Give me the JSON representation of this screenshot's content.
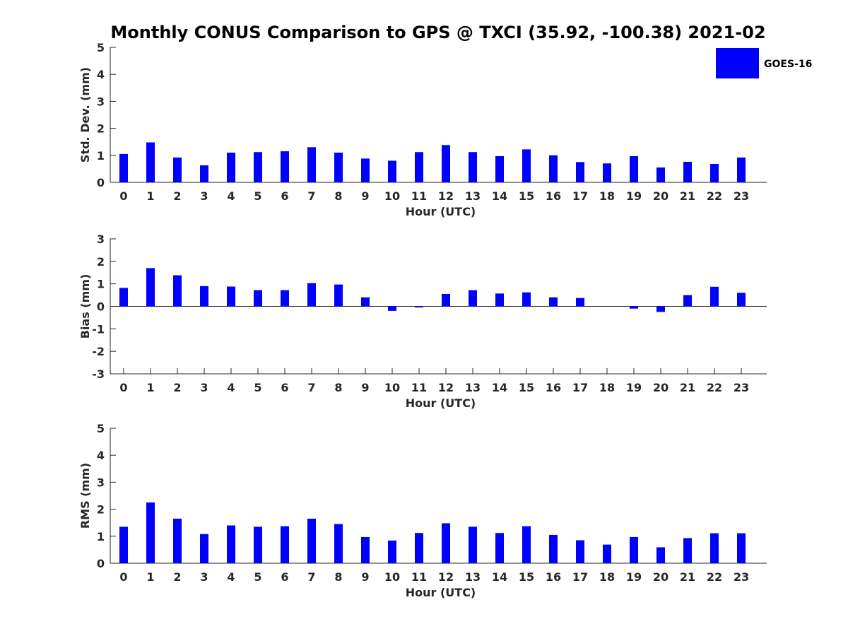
{
  "figure": {
    "title": "Monthly CONUS Comparison to GPS @ TXCI (35.92, -100.38) 2021-02",
    "bar_color": "#0000ff",
    "legend": {
      "label": "GOES-16",
      "placement": "top-right"
    }
  },
  "chart_data": [
    {
      "type": "bar",
      "xlabel": "Hour (UTC)",
      "ylabel": "Std. Dev. (mm)",
      "categories": [
        "0",
        "1",
        "2",
        "3",
        "4",
        "5",
        "6",
        "7",
        "8",
        "9",
        "10",
        "11",
        "12",
        "13",
        "14",
        "15",
        "16",
        "17",
        "18",
        "19",
        "20",
        "21",
        "22",
        "23"
      ],
      "ylim": [
        0,
        5
      ],
      "yticks": [
        "0",
        "1",
        "2",
        "3",
        "4",
        "5"
      ],
      "series": [
        {
          "name": "GOES-16",
          "values": [
            1.05,
            1.48,
            0.92,
            0.63,
            1.1,
            1.12,
            1.15,
            1.3,
            1.1,
            0.88,
            0.8,
            1.12,
            1.38,
            1.12,
            0.97,
            1.22,
            1.0,
            0.75,
            0.7,
            0.97,
            0.55,
            0.76,
            0.68,
            0.92
          ]
        }
      ]
    },
    {
      "type": "bar",
      "xlabel": "Hour (UTC)",
      "ylabel": "Bias (mm)",
      "categories": [
        "0",
        "1",
        "2",
        "3",
        "4",
        "5",
        "6",
        "7",
        "8",
        "9",
        "10",
        "11",
        "12",
        "13",
        "14",
        "15",
        "16",
        "17",
        "18",
        "19",
        "20",
        "21",
        "22",
        "23"
      ],
      "ylim": [
        -3,
        3
      ],
      "yticks": [
        "-3",
        "-2",
        "-1",
        "0",
        "1",
        "2",
        "3"
      ],
      "series": [
        {
          "name": "GOES-16",
          "values": [
            0.82,
            1.7,
            1.38,
            0.9,
            0.88,
            0.72,
            0.72,
            1.03,
            0.97,
            0.4,
            -0.2,
            -0.05,
            0.55,
            0.72,
            0.57,
            0.62,
            0.4,
            0.37,
            0.0,
            -0.1,
            -0.25,
            0.5,
            0.87,
            0.6
          ]
        }
      ]
    },
    {
      "type": "bar",
      "xlabel": "Hour (UTC)",
      "ylabel": "RMS (mm)",
      "categories": [
        "0",
        "1",
        "2",
        "3",
        "4",
        "5",
        "6",
        "7",
        "8",
        "9",
        "10",
        "11",
        "12",
        "13",
        "14",
        "15",
        "16",
        "17",
        "18",
        "19",
        "20",
        "21",
        "22",
        "23"
      ],
      "ylim": [
        0,
        5
      ],
      "yticks": [
        "0",
        "1",
        "2",
        "3",
        "4",
        "5"
      ],
      "series": [
        {
          "name": "GOES-16",
          "values": [
            1.35,
            2.25,
            1.65,
            1.08,
            1.4,
            1.35,
            1.37,
            1.65,
            1.45,
            0.97,
            0.84,
            1.12,
            1.48,
            1.35,
            1.12,
            1.37,
            1.05,
            0.85,
            0.69,
            0.97,
            0.59,
            0.93,
            1.11,
            1.11
          ]
        }
      ]
    }
  ]
}
